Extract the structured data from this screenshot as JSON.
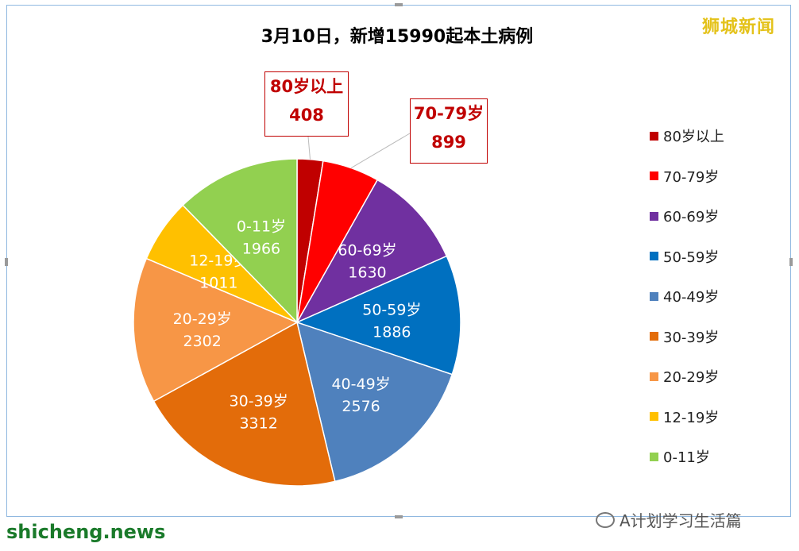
{
  "header": {
    "brand": "狮城新闻"
  },
  "footer": {
    "site": "shicheng.news",
    "account": "A计划学习生活篇"
  },
  "chart_data": {
    "type": "pie",
    "title": "3月10日，新增15990起本土病例",
    "legend_position": "right",
    "slices": [
      {
        "label": "80岁以上",
        "value": 408,
        "color": "#c00000"
      },
      {
        "label": "70-79岁",
        "value": 899,
        "color": "#ff0000"
      },
      {
        "label": "60-69岁",
        "value": 1630,
        "color": "#7030a0"
      },
      {
        "label": "50-59岁",
        "value": 1886,
        "color": "#0070c0"
      },
      {
        "label": "40-49岁",
        "value": 2576,
        "color": "#4f81bd"
      },
      {
        "label": "30-39岁",
        "value": 3312,
        "color": "#e36c0a"
      },
      {
        "label": "20-29岁",
        "value": 2302,
        "color": "#f79646"
      },
      {
        "label": "12-19岁",
        "value": 1011,
        "color": "#ffc000"
      },
      {
        "label": "0-11岁",
        "value": 1966,
        "color": "#92d050"
      }
    ]
  }
}
